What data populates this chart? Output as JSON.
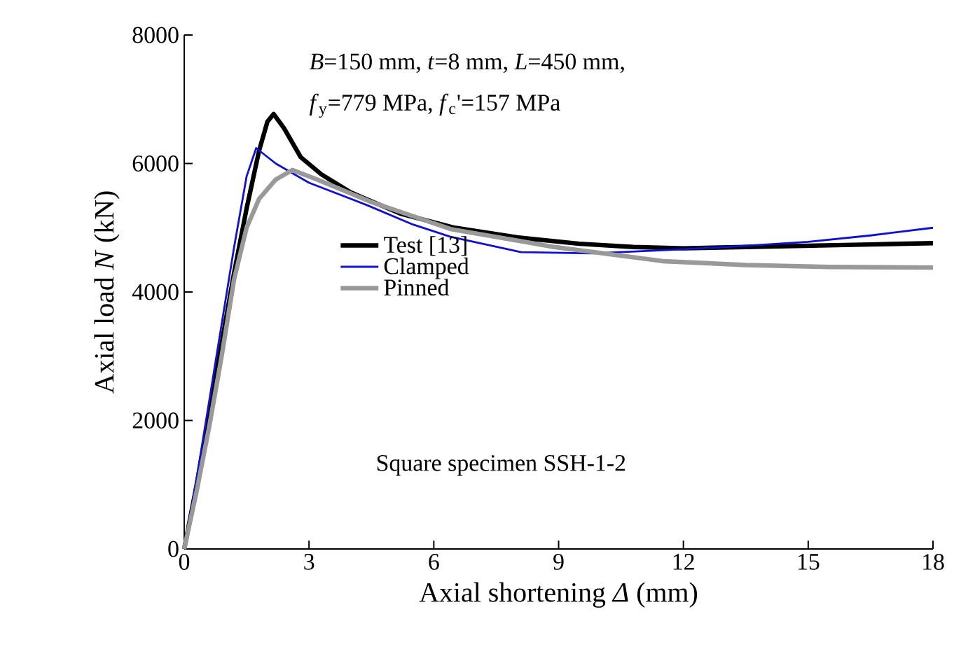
{
  "chart_data": {
    "type": "line",
    "xlabel": "Axial shortening *Δ* (mm)",
    "ylabel": "Axial load *N* (kN)",
    "xlim": [
      0,
      18
    ],
    "ylim": [
      0,
      8000
    ],
    "xticks": [
      0,
      3,
      6,
      9,
      12,
      15,
      18
    ],
    "yticks": [
      0,
      2000,
      4000,
      6000,
      8000
    ],
    "grid": false,
    "legend": "left",
    "marker": "none",
    "line_style": "solid",
    "annotations": [
      "*B*=150 mm, *t*=8 mm, *L*=450 mm,",
      "*f*$_{y}$=779 MPa, *f*$_{c}$'=157 MPa",
      "Square specimen SSH-1-2"
    ],
    "series": [
      {
        "name": "Test [13]",
        "color": "#000000",
        "x": [
          0,
          0.3,
          0.6,
          0.9,
          1.2,
          1.5,
          1.8,
          2.0,
          2.15,
          2.4,
          2.8,
          3.3,
          4,
          5.2,
          6.5,
          8,
          9.5,
          10.8,
          12,
          13.5,
          15,
          16.5,
          18
        ],
        "values": [
          0,
          1000,
          2100,
          3200,
          4300,
          5300,
          6200,
          6650,
          6770,
          6550,
          6100,
          5830,
          5550,
          5220,
          5000,
          4850,
          4750,
          4700,
          4680,
          4700,
          4720,
          4740,
          4760
        ]
      },
      {
        "name": "Clamped",
        "color": "#1010d0",
        "x": [
          0,
          0.3,
          0.6,
          0.9,
          1.2,
          1.5,
          1.73,
          2.2,
          3,
          4.4,
          5.5,
          6.4,
          8.1,
          9.8,
          11.5,
          13,
          15,
          16.5,
          18
        ],
        "values": [
          0,
          1100,
          2300,
          3500,
          4700,
          5800,
          6240,
          6000,
          5700,
          5350,
          5050,
          4860,
          4620,
          4600,
          4650,
          4700,
          4780,
          4880,
          5000
        ]
      },
      {
        "name": "Pinned",
        "color": "#999999",
        "x": [
          0,
          0.3,
          0.6,
          0.9,
          1.2,
          1.5,
          1.8,
          2.2,
          2.6,
          3.2,
          4.5,
          6.4,
          8.9,
          11.5,
          13.5,
          15.5,
          18
        ],
        "values": [
          0,
          900,
          1900,
          3000,
          4200,
          5000,
          5450,
          5750,
          5900,
          5750,
          5400,
          4980,
          4700,
          4480,
          4420,
          4390,
          4380
        ]
      }
    ]
  }
}
